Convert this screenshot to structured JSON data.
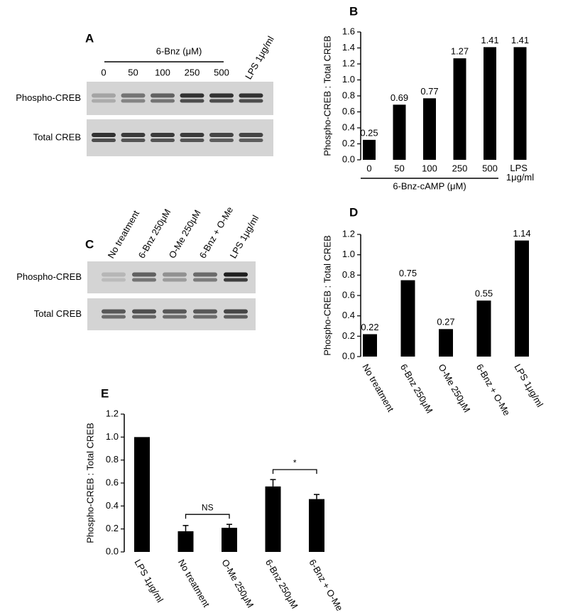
{
  "blots": [
    {
      "panel": "A",
      "header": "6-Bnz (μM)",
      "lanes": [
        "0",
        "50",
        "100",
        "250",
        "500",
        "LPS 1μg/ml"
      ],
      "rows": [
        "Phospho-CREB",
        "Total CREB"
      ]
    },
    {
      "panel": "C",
      "lanes": [
        "No treatment",
        "6-Bnz 250μM",
        "O-Me 250μM",
        "6-Bnz + O-Me",
        "LPS 1μg/ml"
      ],
      "rows": [
        "Phospho-CREB",
        "Total CREB"
      ]
    }
  ],
  "chart_data": [
    {
      "type": "bar",
      "panel": "B",
      "y_label": "Phospho-CREB : Total CREB",
      "x_label": "6-Bnz-cAMP (μM)",
      "categories": [
        "0",
        "50",
        "100",
        "250",
        "500",
        "LPS 1μg/ml"
      ],
      "values": [
        0.25,
        0.69,
        0.77,
        1.27,
        1.41,
        1.41
      ],
      "color": "#000000",
      "ylim": [
        0,
        1.6
      ],
      "yticks": [
        {
          "value": 0,
          "label": "0.0"
        },
        0.2,
        0.4,
        0.6,
        0.8,
        {
          "value": 1,
          "label": "1.0"
        },
        1.2,
        1.4,
        1.6
      ]
    },
    {
      "type": "bar",
      "panel": "D",
      "y_label": "Phospho-CREB : Total CREB",
      "categories": [
        "No treatment",
        "6-Bnz 250μM",
        "O-Me 250μM",
        "6-Bnz + O-Me",
        "LPS 1μg/ml"
      ],
      "values": [
        0.22,
        0.75,
        0.27,
        0.55,
        1.14
      ],
      "color": "#000000",
      "ylim": [
        0,
        1.2
      ],
      "yticks": [
        {
          "value": 0,
          "label": "0.0"
        },
        0.2,
        0.4,
        0.6,
        0.8,
        {
          "value": 1,
          "label": "1.0"
        },
        1.2
      ]
    },
    {
      "type": "bar",
      "panel": "E",
      "y_label": "Phospho-CREB : Total CREB",
      "categories": [
        "LPS 1μg/ml",
        "No treatment",
        "O-Me 250μM",
        "6-Bnz 250μM",
        "6-Bnz + O-Me"
      ],
      "values": [
        1.0,
        0.18,
        0.21,
        0.57,
        0.46
      ],
      "errors": [
        null,
        0.05,
        0.03,
        0.06,
        0.04
      ],
      "color": "#000000",
      "ylim": [
        0,
        1.2
      ],
      "yticks": [
        {
          "value": 0,
          "label": "0.0"
        },
        0.2,
        0.4,
        0.6,
        0.8,
        {
          "value": 1,
          "label": "1.0"
        },
        1.2
      ],
      "annotations": [
        {
          "text": "NS"
        },
        {
          "text": "*"
        }
      ]
    }
  ]
}
